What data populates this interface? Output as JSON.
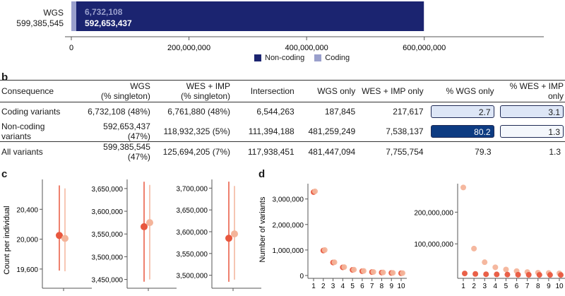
{
  "panel_a": {
    "row_label_1": "WGS",
    "row_label_2": "599,385,545",
    "coding_label": "6,732,108",
    "noncoding_label": "592,653,437",
    "legend": [
      {
        "name": "Non-coding",
        "color": "#1b2470"
      },
      {
        "name": "Coding",
        "color": "#9aa0cc"
      }
    ]
  },
  "panel_b": {
    "letter": "b",
    "headers": [
      "Consequence",
      "WGS\n(% singleton)",
      "WES + IMP\n(% singleton)",
      "Intersection",
      "WGS only",
      "WES + IMP only",
      "% WGS only",
      "% WES + IMP only"
    ],
    "rows": [
      {
        "label": "Coding variants",
        "wgs": "6,732,108 (48%)",
        "wes": "6,761,880 (48%)",
        "inter": "6,544,263",
        "wgs_only": "187,845",
        "wes_only": "217,617",
        "pct_wgs": "2.7",
        "pct_wes": "3.1",
        "pct_wgs_value": 2.7,
        "pct_wes_value": 3.1
      },
      {
        "label": "Non-coding variants",
        "wgs": "592,653,437 (47%)",
        "wes": "118,932,325 (5%)",
        "inter": "111,394,188",
        "wgs_only": "481,259,249",
        "wes_only": "7,538,137",
        "pct_wgs": "80.2",
        "pct_wes": "1.3",
        "pct_wgs_value": 80.2,
        "pct_wes_value": 1.3
      },
      {
        "label": "All variants",
        "wgs": "599,385,545 (47%)",
        "wes": "125,694,205 (7%)",
        "inter": "117,938,451",
        "wgs_only": "481,447,094",
        "wes_only": "7,755,754",
        "pct_wgs": "79.3",
        "pct_wes": "1.3"
      }
    ]
  },
  "panel_c": {
    "letter": "c",
    "ylabel": "Count per individual"
  },
  "panel_d": {
    "letter": "d",
    "ylabel": "Number of variants"
  },
  "colors": {
    "dark_navy": "#1b2470",
    "light_lavender": "#9aa0cc",
    "orange": "#e8573e",
    "peach": "#f4b49a",
    "box_dark": "#0d3b82",
    "box_light": "#dde6f6"
  },
  "chart_data": [
    {
      "type": "bar",
      "orientation": "horizontal",
      "categories": [
        "WGS 599,385,545"
      ],
      "series": [
        {
          "name": "Coding",
          "values": [
            6732108
          ]
        },
        {
          "name": "Non-coding",
          "values": [
            592653437
          ]
        }
      ],
      "stacked": true,
      "xlim": [
        0,
        700000000
      ],
      "xticks": [
        0,
        200000000,
        400000000,
        600000000
      ],
      "xtick_labels": [
        "0",
        "200,000,000",
        "400,000,000",
        "600,000,000"
      ],
      "legend_position": "bottom-right"
    },
    {
      "type": "scatter",
      "ylabel": "Count per individual",
      "ylim": [
        19400,
        20800
      ],
      "yticks": [
        19600,
        20000,
        20400
      ],
      "ytick_labels": [
        "19,600",
        "20,000",
        "20,400"
      ],
      "points": [
        {
          "color": "dark",
          "mean": 20050,
          "low": 19580,
          "high": 20720
        },
        {
          "color": "light",
          "mean": 20010,
          "low": 19570,
          "high": 20680
        }
      ]
    },
    {
      "type": "scatter",
      "ylim": [
        3440000,
        3670000
      ],
      "yticks": [
        3450000,
        3500000,
        3550000,
        3600000,
        3650000
      ],
      "ytick_labels": [
        "3,450,000",
        "3,500,000",
        "3,550,000",
        "3,600,000",
        "3,650,000"
      ],
      "points": [
        {
          "color": "dark",
          "mean": 3566000,
          "low": 3445000,
          "high": 3665000
        },
        {
          "color": "light",
          "mean": 3575000,
          "low": 3450000,
          "high": 3658000
        }
      ]
    },
    {
      "type": "scatter",
      "ylim": [
        3480000,
        3720000
      ],
      "yticks": [
        3500000,
        3550000,
        3600000,
        3650000,
        3700000
      ],
      "ytick_labels": [
        "3,500,000",
        "3,550,000",
        "3,600,000",
        "3,650,000",
        "3,700,000"
      ],
      "points": [
        {
          "color": "dark",
          "mean": 3585000,
          "low": 3485000,
          "high": 3715000
        },
        {
          "color": "light",
          "mean": 3595000,
          "low": 3490000,
          "high": 3705000
        }
      ]
    },
    {
      "type": "scatter",
      "ylabel": "Number of variants",
      "ylim": [
        0,
        3600000
      ],
      "yticks": [
        0,
        1000000,
        2000000,
        3000000
      ],
      "ytick_labels": [
        "0",
        "1,000,000",
        "2,000,000",
        "3,000,000"
      ],
      "x": [
        1,
        2,
        3,
        4,
        5,
        6,
        7,
        8,
        9,
        10
      ],
      "series": [
        {
          "color": "dark",
          "values": [
            3270000,
            980000,
            510000,
            320000,
            220000,
            170000,
            135000,
            115000,
            100000,
            90000
          ]
        },
        {
          "color": "light",
          "values": [
            3300000,
            1000000,
            520000,
            330000,
            230000,
            180000,
            140000,
            120000,
            105000,
            95000
          ]
        }
      ]
    },
    {
      "type": "scatter",
      "ylim": [
        0,
        290000000
      ],
      "yticks": [
        100000000,
        200000000
      ],
      "ytick_labels": [
        "100,000,000",
        "200,000,000"
      ],
      "x": [
        1,
        2,
        3,
        4,
        5,
        6,
        7,
        8,
        9,
        10
      ],
      "series": [
        {
          "color": "light",
          "values": [
            278000000,
            85000000,
            42000000,
            26000000,
            19000000,
            14000000,
            11000000,
            9000000,
            8000000,
            7000000
          ]
        },
        {
          "color": "dark",
          "values": [
            6500000,
            5000000,
            4000000,
            3500000,
            3000000,
            2500000,
            2200000,
            2000000,
            1900000,
            1800000
          ]
        }
      ]
    }
  ]
}
